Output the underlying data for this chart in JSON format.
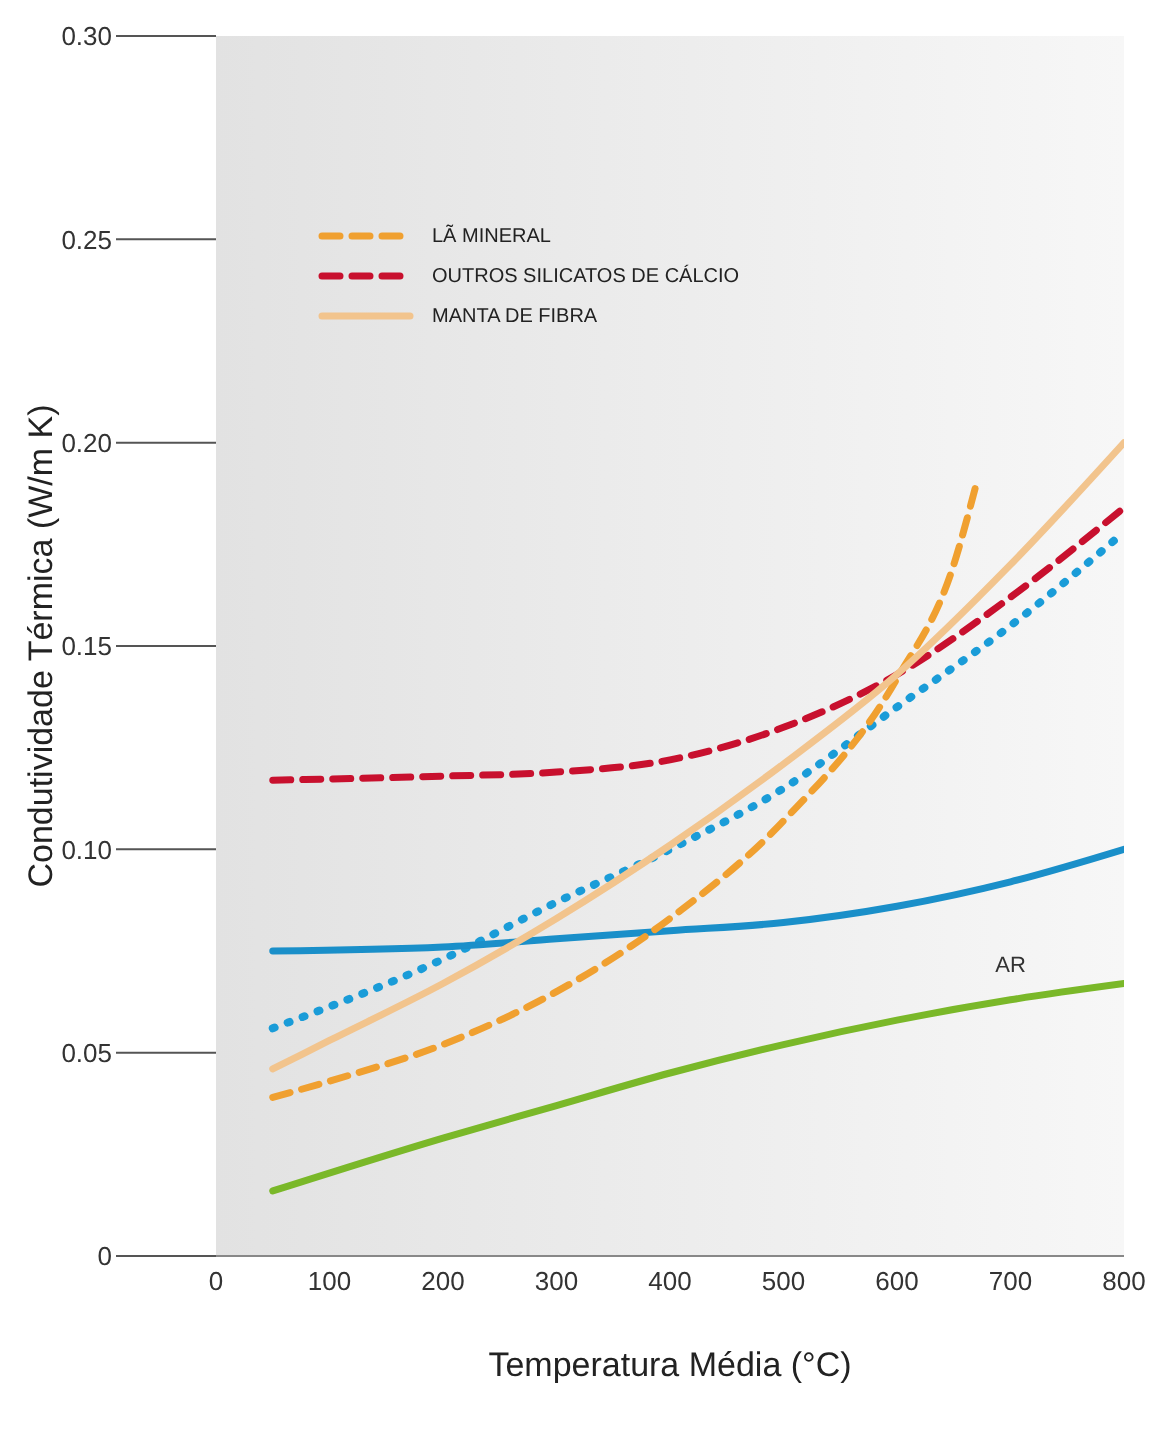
{
  "chart_data": {
    "type": "line",
    "xlabel": "Temperatura Média (°C)",
    "ylabel": "Condutividade Térmica (W/m K)",
    "xlim": [
      0,
      800
    ],
    "xticks": [
      0,
      100,
      200,
      300,
      400,
      500,
      600,
      700,
      800
    ],
    "ylim": [
      0,
      0.3
    ],
    "yticks": [
      {
        "value": 0,
        "label": "0"
      },
      {
        "value": 0.05,
        "label": "0.05"
      },
      {
        "value": 0.1,
        "label": "0.10"
      },
      {
        "value": 0.15,
        "label": "0.15"
      },
      {
        "value": 0.2,
        "label": "0.20"
      },
      {
        "value": 0.25,
        "label": "0.25"
      },
      {
        "value": 0.3,
        "label": "0.30"
      }
    ],
    "grid": false,
    "annotations": [
      "AR"
    ],
    "legend": "top left",
    "marker": "none",
    "series": [
      {
        "color": "#1a9cd8",
        "line_style": "dotted",
        "x": [
          50,
          200,
          300,
          400,
          500,
          600,
          700,
          800
        ],
        "values": [
          0.056,
          0.073,
          0.087,
          0.1,
          0.115,
          0.135,
          0.155,
          0.178
        ]
      },
      {
        "color": "#1a8fc9",
        "line_style": "solid",
        "x": [
          50,
          200,
          300,
          400,
          500,
          600,
          700,
          800
        ],
        "values": [
          0.075,
          0.076,
          0.078,
          0.08,
          0.082,
          0.086,
          0.092,
          0.1
        ]
      },
      {
        "name": "LÃ MINERAL",
        "color": "#f0a030",
        "line_style": "dashed",
        "x": [
          50,
          100,
          200,
          300,
          400,
          500,
          600,
          650,
          670
        ],
        "values": [
          0.039,
          0.043,
          0.052,
          0.065,
          0.083,
          0.107,
          0.142,
          0.17,
          0.19
        ]
      },
      {
        "name": "OUTROS SILICATOS DE CÁLCIO",
        "color": "#c8102e",
        "line_style": "dashed",
        "x": [
          50,
          200,
          300,
          400,
          500,
          600,
          700,
          800
        ],
        "values": [
          0.117,
          0.118,
          0.119,
          0.122,
          0.13,
          0.143,
          0.162,
          0.184
        ]
      },
      {
        "name": "MANTA DE FIBRA",
        "color": "#f2c48d",
        "line_style": "solid",
        "x": [
          50,
          100,
          200,
          300,
          400,
          500,
          600,
          700,
          800
        ],
        "values": [
          0.046,
          0.053,
          0.067,
          0.083,
          0.101,
          0.121,
          0.143,
          0.17,
          0.2
        ]
      },
      {
        "color": "#7ab829",
        "line_style": "solid",
        "x": [
          50,
          200,
          300,
          400,
          500,
          600,
          700,
          800
        ],
        "values": [
          0.016,
          0.029,
          0.037,
          0.045,
          0.052,
          0.058,
          0.063,
          0.067
        ]
      }
    ]
  }
}
